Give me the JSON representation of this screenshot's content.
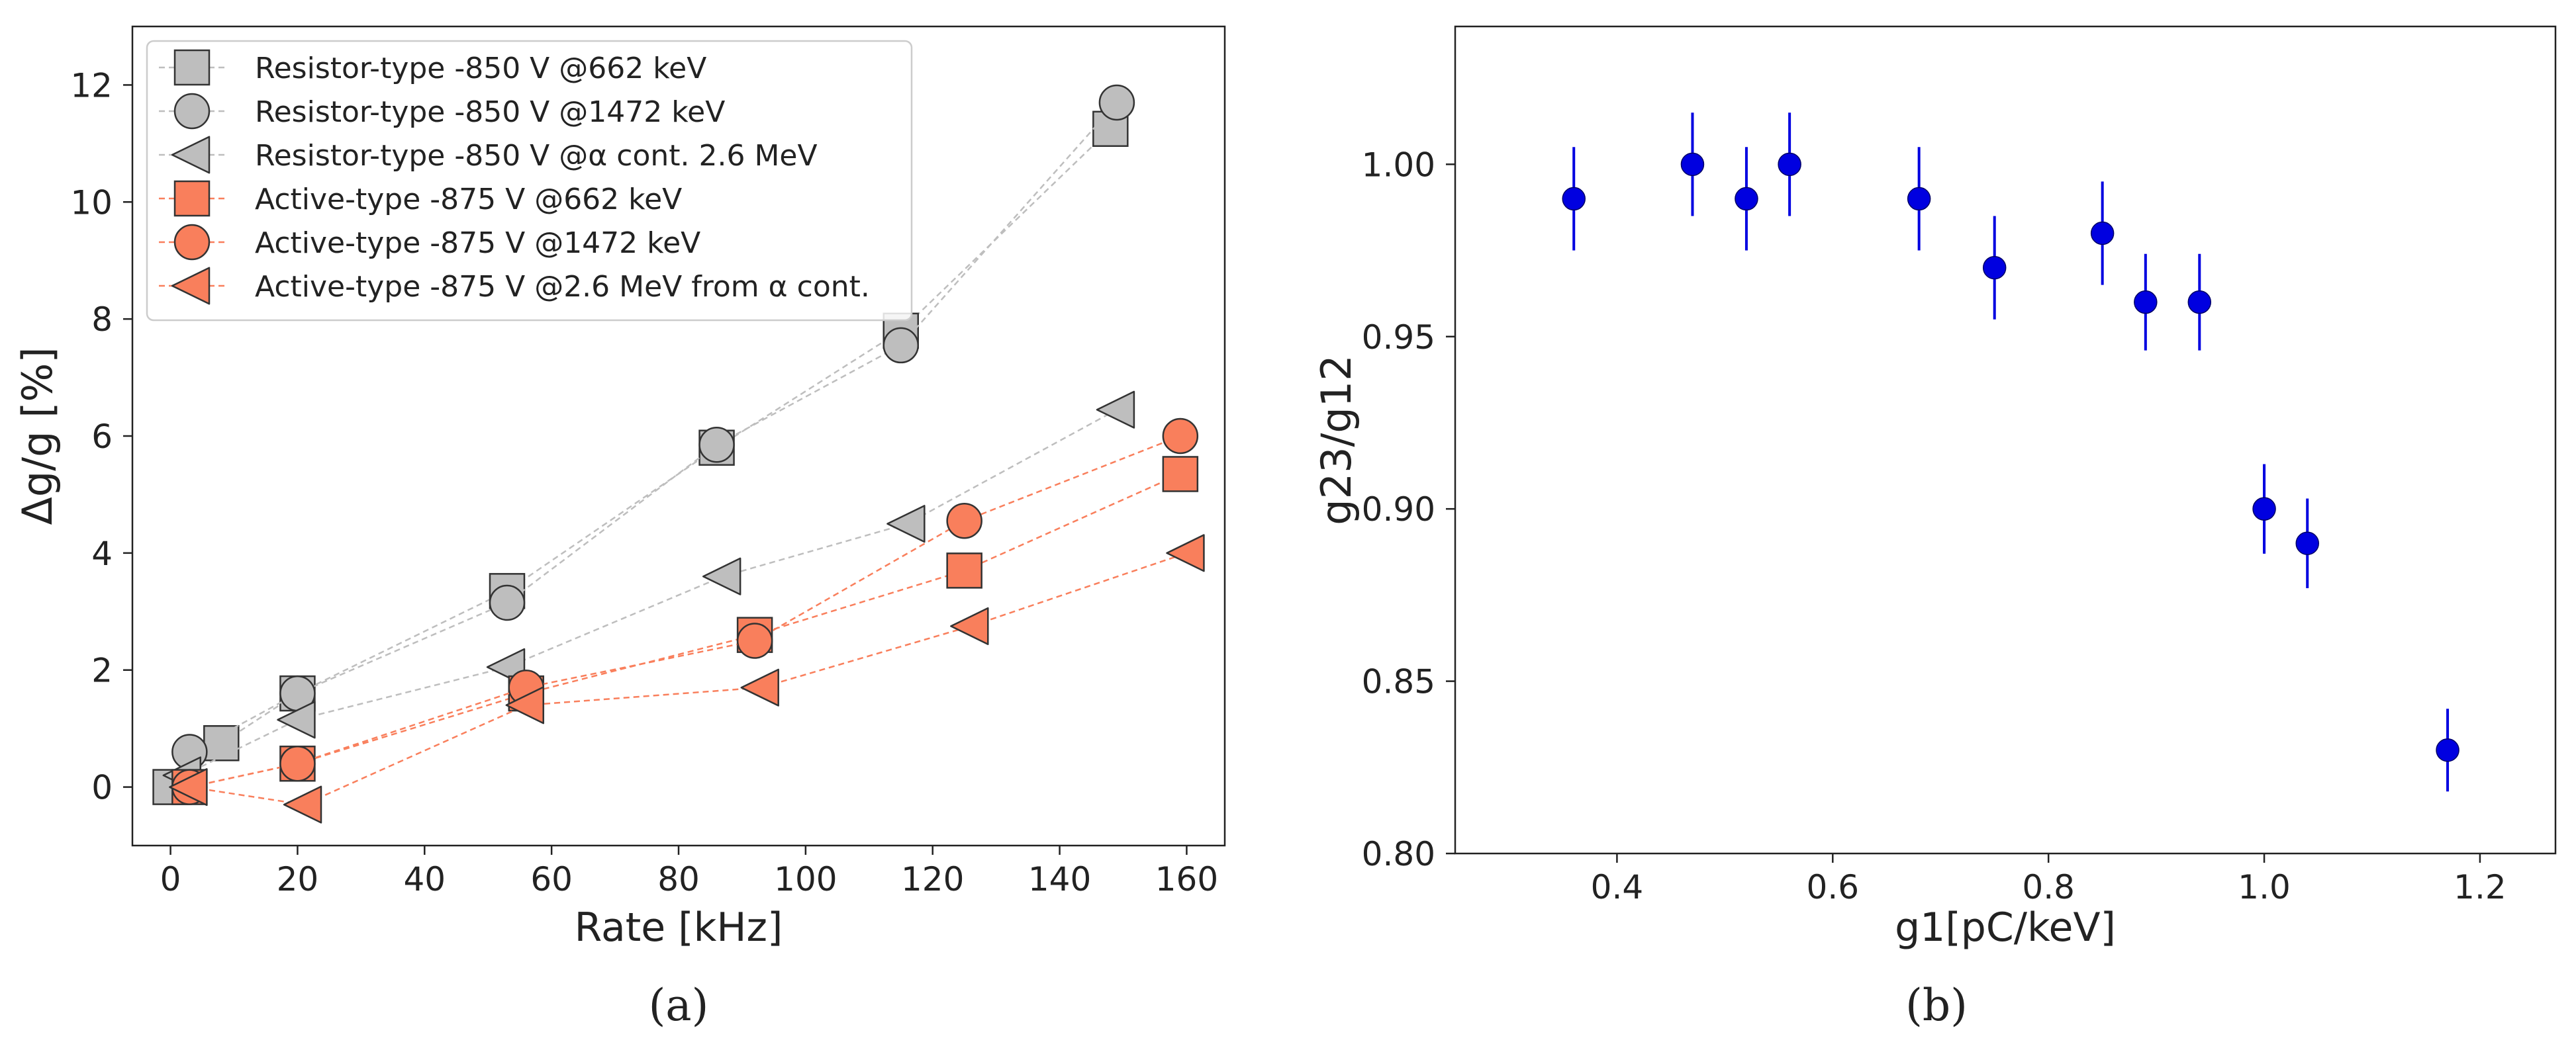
{
  "chart_data": [
    {
      "id": "a",
      "type": "line",
      "panel_label": "(a)",
      "xlabel": "Rate [kHz]",
      "ylabel": "Δg/g [%]",
      "xlim": [
        -6,
        166
      ],
      "ylim": [
        -1,
        13
      ],
      "xticks": [
        0,
        20,
        40,
        60,
        80,
        100,
        120,
        140,
        160
      ],
      "yticks": [
        0,
        2,
        4,
        6,
        8,
        10,
        12
      ],
      "legend_position": "top-left",
      "series": [
        {
          "name": "Resistor-type -850 V  @662 keV",
          "marker": "square",
          "color": "#bebebe",
          "x": [
            0,
            8,
            20,
            53,
            86,
            115,
            148
          ],
          "y": [
            0,
            0.75,
            1.6,
            3.35,
            5.8,
            7.8,
            11.25
          ]
        },
        {
          "name": "Resistor-type -850 V @1472 keV",
          "marker": "circle",
          "color": "#bebebe",
          "x": [
            3,
            20,
            53,
            86,
            115,
            149
          ],
          "y": [
            0.6,
            1.6,
            3.15,
            5.85,
            7.55,
            11.7
          ]
        },
        {
          "name": "Resistor-type -850 V @α cont. 2.6 MeV",
          "marker": "triangle-left",
          "color": "#bebebe",
          "x": [
            2,
            20,
            53,
            87,
            116,
            149
          ],
          "y": [
            0.2,
            1.15,
            2.05,
            3.6,
            4.5,
            6.45
          ]
        },
        {
          "name": "Active-type -875 V @662 keV",
          "marker": "square",
          "color": "#f97f5c",
          "x": [
            3,
            20,
            56,
            92,
            125,
            159
          ],
          "y": [
            0,
            0.4,
            1.6,
            2.6,
            3.7,
            5.35
          ]
        },
        {
          "name": "Active-type -875 V @1472 keV",
          "marker": "circle",
          "color": "#f97f5c",
          "x": [
            3,
            20,
            56,
            92,
            125,
            159
          ],
          "y": [
            0,
            0.4,
            1.7,
            2.5,
            4.55,
            6.0
          ]
        },
        {
          "name": "Active-type -875 V @2.6 MeV from α cont.",
          "marker": "triangle-left",
          "color": "#f97f5c",
          "x": [
            3,
            21,
            56,
            93,
            126,
            160
          ],
          "y": [
            0,
            -0.3,
            1.4,
            1.7,
            2.75,
            4.0
          ]
        }
      ]
    },
    {
      "id": "b",
      "type": "scatter",
      "panel_label": "(b)",
      "xlabel": "g1[pC/keV]",
      "ylabel": "g23/g12",
      "xlim": [
        0.25,
        1.27
      ],
      "ylim": [
        0.8,
        1.04
      ],
      "xticks": [
        0.4,
        0.6,
        0.8,
        1.0,
        1.2
      ],
      "yticks": [
        0.8,
        0.85,
        0.9,
        0.95,
        1.0
      ],
      "xticklabels": [
        "0.4",
        "0.6",
        "0.8",
        "1.0",
        "1.2"
      ],
      "yticklabels": [
        "0.80",
        "0.85",
        "0.90",
        "0.95",
        "1.00"
      ],
      "marker": "circle",
      "color": "#0000e0",
      "x": [
        0.36,
        0.47,
        0.52,
        0.56,
        0.68,
        0.75,
        0.85,
        0.89,
        0.94,
        1.0,
        1.04,
        1.17
      ],
      "y": [
        0.99,
        1.0,
        0.99,
        1.0,
        0.99,
        0.97,
        0.98,
        0.96,
        0.96,
        0.9,
        0.89,
        0.83
      ],
      "yerr": [
        0.015,
        0.015,
        0.015,
        0.015,
        0.015,
        0.015,
        0.015,
        0.014,
        0.014,
        0.013,
        0.013,
        0.012
      ]
    }
  ]
}
